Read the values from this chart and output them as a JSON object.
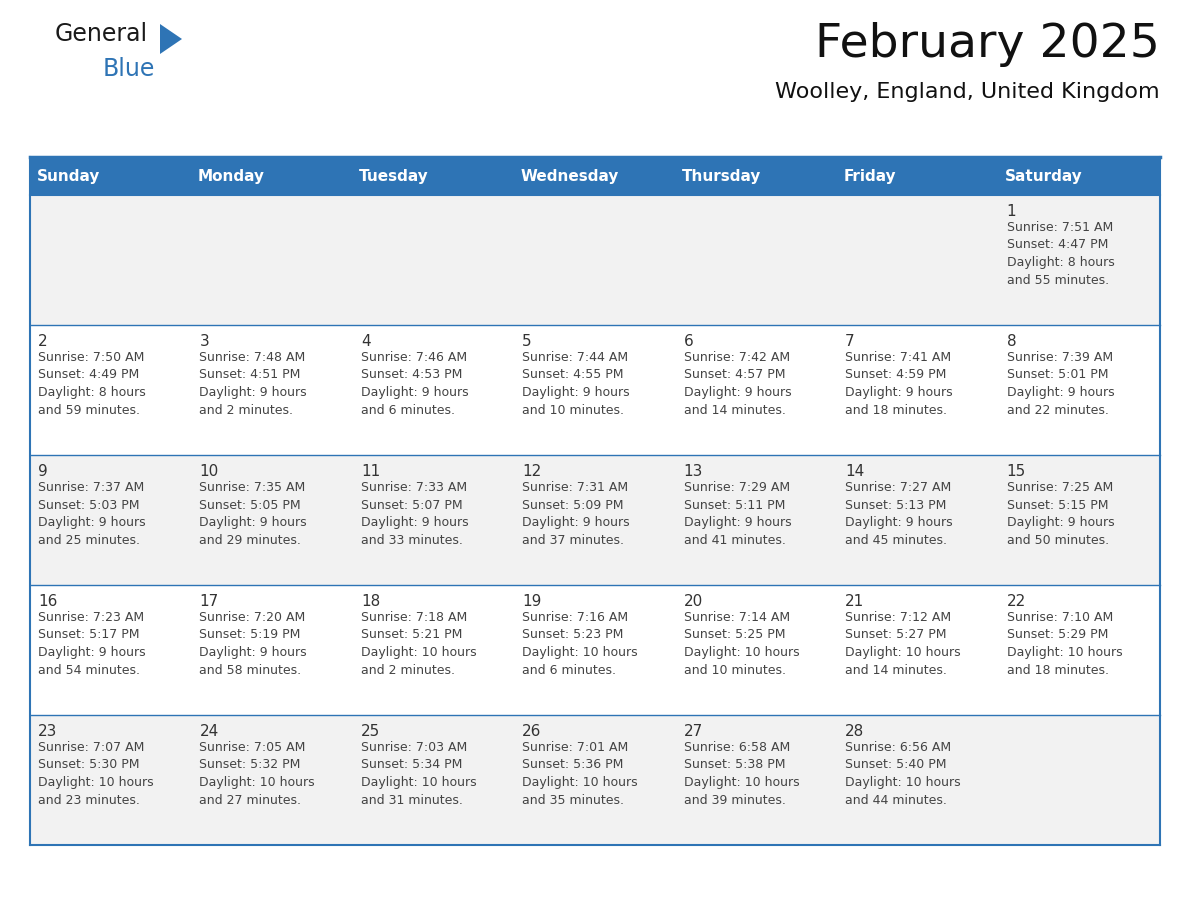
{
  "title": "February 2025",
  "subtitle": "Woolley, England, United Kingdom",
  "header_bg": "#2E74B5",
  "header_text_color": "#FFFFFF",
  "row_bg_even": "#F2F2F2",
  "row_bg_odd": "#FFFFFF",
  "border_color": "#2E74B5",
  "text_color": "#444444",
  "day_num_color": "#333333",
  "day_names": [
    "Sunday",
    "Monday",
    "Tuesday",
    "Wednesday",
    "Thursday",
    "Friday",
    "Saturday"
  ],
  "calendar": [
    [
      null,
      null,
      null,
      null,
      null,
      null,
      1
    ],
    [
      2,
      3,
      4,
      5,
      6,
      7,
      8
    ],
    [
      9,
      10,
      11,
      12,
      13,
      14,
      15
    ],
    [
      16,
      17,
      18,
      19,
      20,
      21,
      22
    ],
    [
      23,
      24,
      25,
      26,
      27,
      28,
      null
    ]
  ],
  "day_data": {
    "1": {
      "sunrise": "7:51 AM",
      "sunset": "4:47 PM",
      "daylight": "8 hours and 55 minutes."
    },
    "2": {
      "sunrise": "7:50 AM",
      "sunset": "4:49 PM",
      "daylight": "8 hours and 59 minutes."
    },
    "3": {
      "sunrise": "7:48 AM",
      "sunset": "4:51 PM",
      "daylight": "9 hours and 2 minutes."
    },
    "4": {
      "sunrise": "7:46 AM",
      "sunset": "4:53 PM",
      "daylight": "9 hours and 6 minutes."
    },
    "5": {
      "sunrise": "7:44 AM",
      "sunset": "4:55 PM",
      "daylight": "9 hours and 10 minutes."
    },
    "6": {
      "sunrise": "7:42 AM",
      "sunset": "4:57 PM",
      "daylight": "9 hours and 14 minutes."
    },
    "7": {
      "sunrise": "7:41 AM",
      "sunset": "4:59 PM",
      "daylight": "9 hours and 18 minutes."
    },
    "8": {
      "sunrise": "7:39 AM",
      "sunset": "5:01 PM",
      "daylight": "9 hours and 22 minutes."
    },
    "9": {
      "sunrise": "7:37 AM",
      "sunset": "5:03 PM",
      "daylight": "9 hours and 25 minutes."
    },
    "10": {
      "sunrise": "7:35 AM",
      "sunset": "5:05 PM",
      "daylight": "9 hours and 29 minutes."
    },
    "11": {
      "sunrise": "7:33 AM",
      "sunset": "5:07 PM",
      "daylight": "9 hours and 33 minutes."
    },
    "12": {
      "sunrise": "7:31 AM",
      "sunset": "5:09 PM",
      "daylight": "9 hours and 37 minutes."
    },
    "13": {
      "sunrise": "7:29 AM",
      "sunset": "5:11 PM",
      "daylight": "9 hours and 41 minutes."
    },
    "14": {
      "sunrise": "7:27 AM",
      "sunset": "5:13 PM",
      "daylight": "9 hours and 45 minutes."
    },
    "15": {
      "sunrise": "7:25 AM",
      "sunset": "5:15 PM",
      "daylight": "9 hours and 50 minutes."
    },
    "16": {
      "sunrise": "7:23 AM",
      "sunset": "5:17 PM",
      "daylight": "9 hours and 54 minutes."
    },
    "17": {
      "sunrise": "7:20 AM",
      "sunset": "5:19 PM",
      "daylight": "9 hours and 58 minutes."
    },
    "18": {
      "sunrise": "7:18 AM",
      "sunset": "5:21 PM",
      "daylight": "10 hours and 2 minutes."
    },
    "19": {
      "sunrise": "7:16 AM",
      "sunset": "5:23 PM",
      "daylight": "10 hours and 6 minutes."
    },
    "20": {
      "sunrise": "7:14 AM",
      "sunset": "5:25 PM",
      "daylight": "10 hours and 10 minutes."
    },
    "21": {
      "sunrise": "7:12 AM",
      "sunset": "5:27 PM",
      "daylight": "10 hours and 14 minutes."
    },
    "22": {
      "sunrise": "7:10 AM",
      "sunset": "5:29 PM",
      "daylight": "10 hours and 18 minutes."
    },
    "23": {
      "sunrise": "7:07 AM",
      "sunset": "5:30 PM",
      "daylight": "10 hours and 23 minutes."
    },
    "24": {
      "sunrise": "7:05 AM",
      "sunset": "5:32 PM",
      "daylight": "10 hours and 27 minutes."
    },
    "25": {
      "sunrise": "7:03 AM",
      "sunset": "5:34 PM",
      "daylight": "10 hours and 31 minutes."
    },
    "26": {
      "sunrise": "7:01 AM",
      "sunset": "5:36 PM",
      "daylight": "10 hours and 35 minutes."
    },
    "27": {
      "sunrise": "6:58 AM",
      "sunset": "5:38 PM",
      "daylight": "10 hours and 39 minutes."
    },
    "28": {
      "sunrise": "6:56 AM",
      "sunset": "5:40 PM",
      "daylight": "10 hours and 44 minutes."
    }
  },
  "logo_text_general": "General",
  "logo_text_blue": "Blue",
  "logo_color_general": "#1a1a1a",
  "logo_color_blue": "#2E74B5",
  "logo_triangle_color": "#2E74B5",
  "title_fontsize": 34,
  "subtitle_fontsize": 16,
  "header_fontsize": 11,
  "day_num_fontsize": 11,
  "cell_text_fontsize": 9
}
